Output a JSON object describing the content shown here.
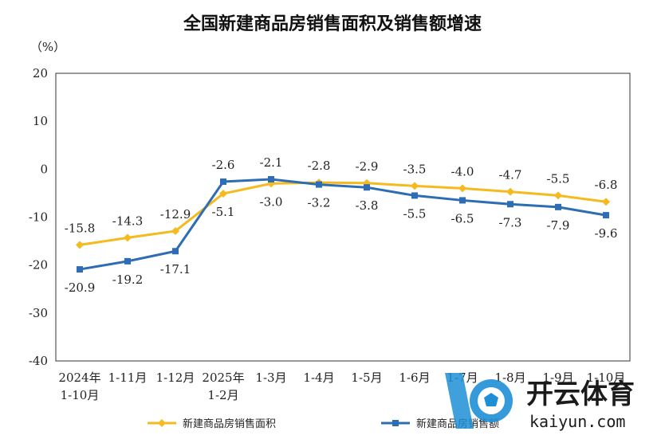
{
  "chart_data": {
    "type": "line",
    "title": "全国新建商品房销售面积及销售额增速",
    "ylabel": "（%）",
    "ylim": [
      -40,
      20
    ],
    "yticks": [
      20,
      10,
      0,
      -10,
      -20,
      -30,
      -40
    ],
    "categories": [
      "2024年\n1-10月",
      "1-11月",
      "1-12月",
      "2025年\n1-2月",
      "1-3月",
      "1-4月",
      "1-5月",
      "1-6月",
      "1-7月",
      "1-8月",
      "1-9月",
      "1-10月"
    ],
    "grid": false,
    "legend": "bottom",
    "series": [
      {
        "name": "新建商品房销售面积",
        "color": "#F5BA1E",
        "marker": "diamond",
        "values": [
          -15.8,
          -14.3,
          -12.9,
          -5.1,
          -3.0,
          -2.8,
          -2.9,
          -3.5,
          -4.0,
          -4.7,
          -5.5,
          -6.8
        ]
      },
      {
        "name": "新建商品房销售额",
        "color": "#2E6DB4",
        "marker": "square",
        "values": [
          -20.9,
          -19.2,
          -17.1,
          -2.6,
          -2.1,
          -3.2,
          -3.8,
          -5.5,
          -6.5,
          -7.3,
          -7.9,
          -9.6
        ]
      }
    ]
  },
  "watermark": {
    "brand": "开云体育",
    "url": "kaiyun.com"
  }
}
